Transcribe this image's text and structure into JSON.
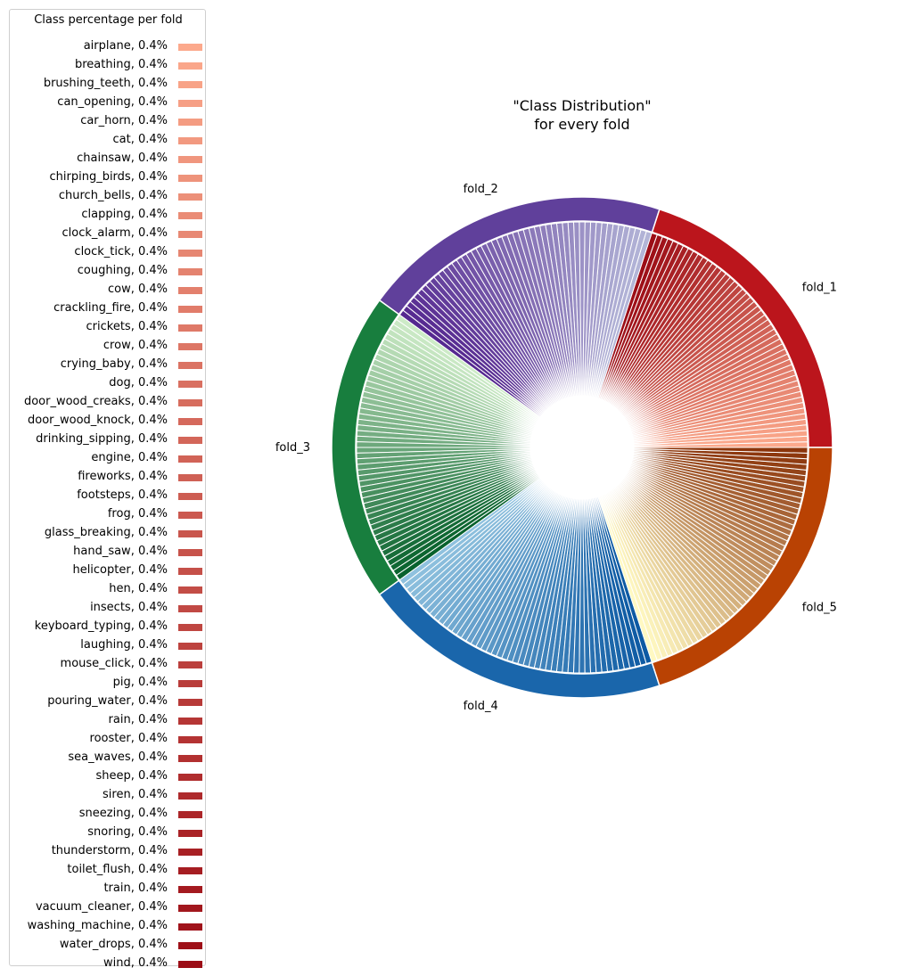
{
  "chart_data": {
    "type": "pie",
    "title": "\"Class Distribution\"\nfor every fold",
    "legend": {
      "title": "Class percentage per fold",
      "placement": "left"
    },
    "outer": {
      "categories": [
        "fold_1",
        "fold_2",
        "fold_3",
        "fold_4",
        "fold_5"
      ],
      "values": [
        20,
        20,
        20,
        20,
        20
      ],
      "colors": [
        "#bb151c",
        "#60409b",
        "#187e3e",
        "#1a66ab",
        "#b94203"
      ]
    },
    "inner": {
      "classes": [
        "airplane",
        "breathing",
        "brushing_teeth",
        "can_opening",
        "car_horn",
        "cat",
        "chainsaw",
        "chirping_birds",
        "church_bells",
        "clapping",
        "clock_alarm",
        "clock_tick",
        "coughing",
        "cow",
        "crackling_fire",
        "crickets",
        "crow",
        "crying_baby",
        "dog",
        "door_wood_creaks",
        "door_wood_knock",
        "drinking_sipping",
        "engine",
        "fireworks",
        "footsteps",
        "frog",
        "glass_breaking",
        "hand_saw",
        "helicopter",
        "hen",
        "insects",
        "keyboard_typing",
        "laughing",
        "mouse_click",
        "pig",
        "pouring_water",
        "rain",
        "rooster",
        "sea_waves",
        "sheep",
        "siren",
        "sneezing",
        "snoring",
        "thunderstorm",
        "toilet_flush",
        "train",
        "vacuum_cleaner",
        "washing_machine",
        "water_drops",
        "wind"
      ],
      "value_per_class_per_fold": 0.4,
      "unit": "%",
      "fold_gradients": [
        [
          "#fca98c",
          "#9c0d16"
        ],
        [
          "#b3b5d7",
          "#552890"
        ],
        [
          "#cdebc7",
          "#08622d"
        ],
        [
          "#8fc1de",
          "#0d5aa3"
        ],
        [
          "#fff9c2",
          "#8b340a"
        ]
      ]
    }
  }
}
